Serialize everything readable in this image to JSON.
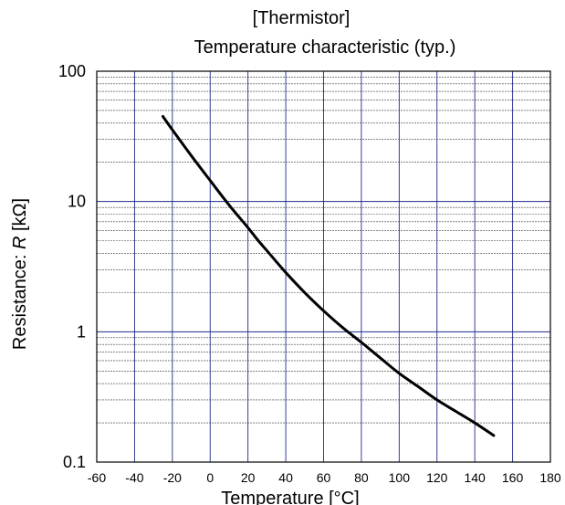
{
  "chart_data": {
    "type": "line",
    "title_line1": "[Thermistor]",
    "title_line2": "Temperature characteristic (typ.)",
    "xlabel": "Temperature  [°C]",
    "ylabel_prefix": "Resistance: ",
    "ylabel_var": "R",
    "ylabel_suffix": " [kΩ]",
    "xlim": [
      -60,
      180
    ],
    "ylim": [
      0.1,
      100
    ],
    "yscale": "log",
    "grid": true,
    "x_ticks": [
      "-60",
      "-40",
      "-20",
      "0",
      "20",
      "40",
      "60",
      "80",
      "100",
      "120",
      "140",
      "160",
      "180"
    ],
    "y_ticks": [
      "0.1",
      "1",
      "10",
      "100"
    ],
    "colors": {
      "grid_major": "#1f2a8a",
      "grid_minor": "#3a3a3a",
      "curve": "#000000"
    },
    "series": [
      {
        "x": [
          -25,
          -20,
          -10,
          0,
          10,
          20,
          25,
          30,
          40,
          50,
          60,
          70,
          80,
          90,
          100,
          110,
          120,
          130,
          140,
          150
        ],
        "values": [
          45,
          35.5,
          22.5,
          14.5,
          9.4,
          6.3,
          5.1,
          4.2,
          2.85,
          2.0,
          1.45,
          1.08,
          0.83,
          0.63,
          0.48,
          0.38,
          0.3,
          0.245,
          0.2,
          0.16
        ]
      }
    ]
  }
}
